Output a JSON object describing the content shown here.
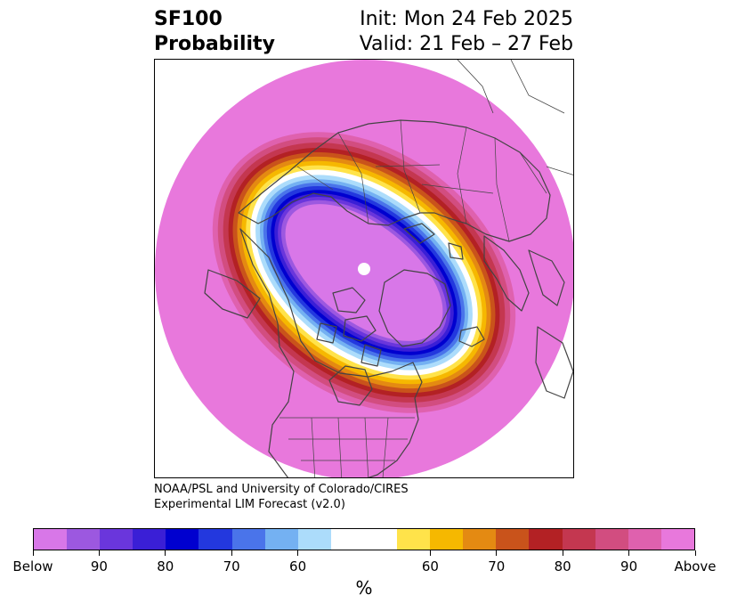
{
  "title": {
    "line1": "SF100",
    "line2": "Probability"
  },
  "subtitle": {
    "init": "Init: Mon 24 Feb 2025",
    "valid": "Valid: 21 Feb – 27 Feb"
  },
  "credit": {
    "line1": "NOAA/PSL and University of Colorado/CIRES",
    "line2": "Experimental LIM Forecast (v2.0)"
  },
  "map": {
    "projection": "north-polar-stereographic",
    "background_color": "#e878dc",
    "coastline_color": "#444444"
  },
  "colorbar": {
    "unit": "%",
    "colors": [
      "#d877e8",
      "#9c58e0",
      "#6a36dc",
      "#3a1fd6",
      "#0000cf",
      "#2338de",
      "#4a74ea",
      "#74b1f2",
      "#acdcfb",
      "#ffffff",
      "#ffffff",
      "#ffe34a",
      "#f6b800",
      "#e48a12",
      "#c9531b",
      "#b32124",
      "#c43750",
      "#d24d80",
      "#df61ae",
      "#e878dc"
    ],
    "tick_labels": [
      "Below",
      "90",
      "80",
      "70",
      "60",
      "60",
      "70",
      "80",
      "90",
      "Above"
    ]
  }
}
